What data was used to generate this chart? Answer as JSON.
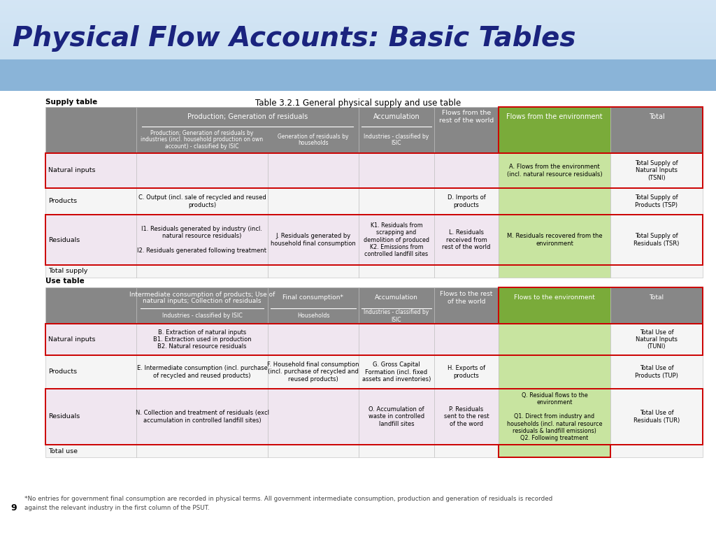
{
  "title": "Physical Flow Accounts: Basic Tables",
  "subtitle": "Table 3.2.1 General physical supply and use table",
  "page_number": "9",
  "footnote": "*No entries for government final consumption are recorded in physical terms. All government intermediate consumption, production and generation of residuals is recorded\nagainst the relevant industry in the first column of the PSUT.",
  "colors": {
    "gray_header": "#878787",
    "green_env": "#7aab3a",
    "light_green": "#c8e4a0",
    "pink_row": "#f0e6f0",
    "white_row": "#f5f5f5",
    "white_total": "#f0f0f0",
    "red_border": "#cc0000",
    "title_color": "#1a237e",
    "banner_top": "#c8ddf0",
    "banner_bottom": "#7aaed0"
  },
  "supply": {
    "label": "Supply table",
    "header1": {
      "col_label": "",
      "col_prod": "Production; Generation of residuals",
      "col_accum": "Accumulation",
      "col_flows_rest": "Flows from the\nrest of the world",
      "col_env": "Flows from the environment",
      "col_total": "Total"
    },
    "header2": {
      "col_prod_ind": "Production; Generation of residuals by\nindustries (incl. household production on own\naccount) - classified by ISIC",
      "col_prod_hh": "Generation of residuals by\nhouseholds",
      "col_accum_ind": "Industries - classified by\nISIC"
    },
    "rows": [
      {
        "label": "Natural inputs",
        "c1": "",
        "c2": "",
        "c3": "",
        "c4": "",
        "c5": "A. Flows from the environment\n(incl. natural resource residuals)",
        "c6": "Total Supply of\nNatural Inputs\n(TSNI)",
        "pink": true,
        "red_border": true
      },
      {
        "label": "Products",
        "c1": "C. Output (incl. sale of recycled and reused\nproducts)",
        "c2": "",
        "c3": "",
        "c4": "D. Imports of\nproducts",
        "c5": "",
        "c6": "Total Supply of\nProducts (TSP)",
        "pink": false,
        "red_border": false
      },
      {
        "label": "Residuals",
        "c1": "I1. Residuals generated by industry (incl.\nnatural resource residuals)\n\nI2. Residuals generated following treatment",
        "c2": "J. Residuals generated by\nhousehold final consumption",
        "c3": "K1. Residuals from\nscrapping and\ndemolition of produced\nK2. Emissions from\ncontrolled landfill sites",
        "c4": "L. Residuals\nreceived from\nrest of the world",
        "c5": "M. Residuals recovered from the\nenvironment",
        "c6": "Total Supply of\nResiduals (TSR)",
        "pink": true,
        "red_border": true
      },
      {
        "label": "Total supply",
        "c1": "",
        "c2": "",
        "c3": "",
        "c4": "",
        "c5": "",
        "c6": "",
        "pink": false,
        "red_border": false
      }
    ]
  },
  "use": {
    "label": "Use table",
    "header1": {
      "col_label": "",
      "col_interm": "Intermediate consumption of products; Use of\nnatural inputs; Collection of residuals",
      "col_final": "Final consumption*",
      "col_accum": "Accumulation",
      "col_flows_rest": "Flows to the rest\nof the world",
      "col_env": "Flows to the environment",
      "col_total": "Total"
    },
    "header2": {
      "col_interm_ind": "Industries - classified by ISIC",
      "col_final_hh": "Households",
      "col_accum_ind": "Industries - classified by\nISIC"
    },
    "rows": [
      {
        "label": "Natural inputs",
        "c1": "B. Extraction of natural inputs\nB1. Extraction used in production\nB2. Natural resource residuals",
        "c2": "",
        "c3": "",
        "c4": "",
        "c5": "",
        "c6": "Total Use of\nNatural Inputs\n(TUNI)",
        "pink": true,
        "red_border": true
      },
      {
        "label": "Products",
        "c1": "E. Intermediate consumption (incl. purchase\nof recycled and reused products)",
        "c2": "F. Household final consumption\n(incl. purchase of recycled and\nreused products)",
        "c3": "G. Gross Capital\nFormation (incl. fixed\nassets and inventories)",
        "c4": "H. Exports of\nproducts",
        "c5": "",
        "c6": "Total Use of\nProducts (TUP)",
        "pink": false,
        "red_border": false
      },
      {
        "label": "Residuals",
        "c1": "N. Collection and treatment of residuals (excl\naccumulation in controlled landfill sites)",
        "c2": "",
        "c3": "O. Accumulation of\nwaste in controlled\nlandfill sites",
        "c4": "P. Residuals\nsent to the rest\nof the word",
        "c5": "Q. Residual flows to the\nenvironment\n\nQ1. Direct from industry and\nhouseholds (incl. natural resource\nresiduals & landfill emissions)\nQ2. Following treatment",
        "c6": "Total Use of\nResiduals (TUR)",
        "pink": true,
        "red_border": true
      },
      {
        "label": "Total use",
        "c1": "",
        "c2": "",
        "c3": "",
        "c4": "",
        "c5": "",
        "c6": "",
        "pink": false,
        "red_border": false
      }
    ]
  }
}
